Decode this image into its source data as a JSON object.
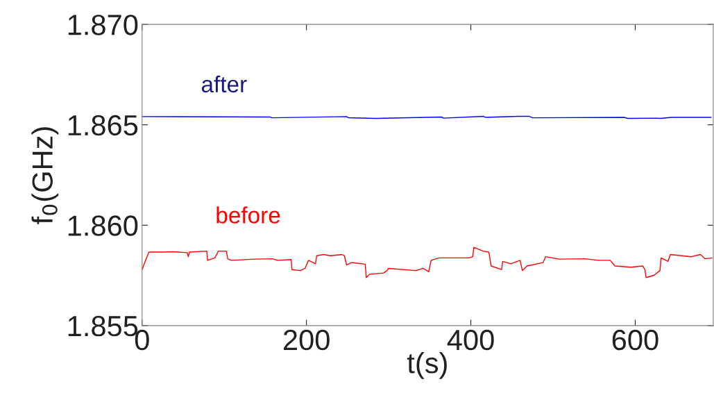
{
  "chart_data": {
    "type": "line",
    "xlabel": "t(s)",
    "ylabel": "f$_{0}$(GHz)",
    "xlim": [
      0,
      695
    ],
    "xticks": [
      0,
      200,
      400,
      600
    ],
    "ylim": [
      1.855,
      1.87
    ],
    "yticks": [
      {
        "value": 1.855,
        "label": "1.855"
      },
      {
        "value": 1.86,
        "label": "1.860"
      },
      {
        "value": 1.865,
        "label": "1.865"
      },
      {
        "value": 1.87,
        "label": "1.870"
      }
    ],
    "grid": false,
    "legend": false,
    "marker": "none",
    "line_style": "solid",
    "series": [
      {
        "name": "after",
        "color": "#0000ff",
        "x": [
          0,
          155.7,
          157.9,
          249,
          251,
          284.5,
          364.4,
          366.6,
          415.5,
          417.7,
          457.7,
          471,
          475.5,
          586.5,
          591,
          626.5,
          630.9,
          644.2,
          692.2
        ],
        "values": [
          1.86541,
          1.86539,
          1.86535,
          1.86541,
          1.86535,
          1.86532,
          1.86539,
          1.86533,
          1.86542,
          1.86537,
          1.86542,
          1.86542,
          1.86535,
          1.86537,
          1.86532,
          1.86533,
          1.86532,
          1.86537,
          1.86537
        ]
      },
      {
        "name": "before",
        "color": "#ff0000",
        "x": [
          0,
          4.2,
          8.4,
          23.9,
          38,
          54.9,
          56.3,
          57.7,
          78.8,
          79.6,
          88.6,
          92.8,
          102.7,
          104.1,
          108.3,
          136.4,
          158.9,
          164.6,
          181.4,
          182.3,
          192.7,
          198.3,
          202.5,
          211,
          212.4,
          220.8,
          229.3,
          243.3,
          246.1,
          248.9,
          254.6,
          271.5,
          272.8,
          277,
          293.9,
          298.1,
          299.6,
          333.3,
          341.8,
          348.8,
          351.6,
          361.5,
          398,
          402.3,
          403.7,
          414.9,
          421.9,
          424.7,
          437.4,
          438.8,
          448.7,
          459.9,
          462.7,
          468.4,
          488,
          490.9,
          507.8,
          538.7,
          555.6,
          569.6,
          575.3,
          594.9,
          609,
          611.8,
          613.2,
          623.1,
          630.1,
          631.5,
          639.9,
          642.8,
          668.1,
          679.3,
          684.9,
          693.4
        ],
        "values": [
          1.85779,
          1.85825,
          1.85866,
          1.85866,
          1.85868,
          1.85863,
          1.85843,
          1.85866,
          1.85871,
          1.85825,
          1.85837,
          1.85871,
          1.85871,
          1.85833,
          1.85825,
          1.85831,
          1.85833,
          1.85825,
          1.85829,
          1.85779,
          1.85774,
          1.85785,
          1.85825,
          1.85808,
          1.85848,
          1.85854,
          1.85848,
          1.85854,
          1.85848,
          1.85802,
          1.85814,
          1.85806,
          1.85739,
          1.85756,
          1.85762,
          1.85774,
          1.85785,
          1.85774,
          1.85785,
          1.85768,
          1.85825,
          1.85837,
          1.85837,
          1.85843,
          1.8589,
          1.85871,
          1.85866,
          1.85797,
          1.85779,
          1.8582,
          1.85808,
          1.85825,
          1.85774,
          1.85797,
          1.85814,
          1.85843,
          1.85831,
          1.85833,
          1.85825,
          1.85825,
          1.85797,
          1.85791,
          1.85797,
          1.85779,
          1.85739,
          1.85751,
          1.85774,
          1.85837,
          1.8582,
          1.85854,
          1.85843,
          1.85854,
          1.85833,
          1.85837
        ]
      }
    ]
  }
}
